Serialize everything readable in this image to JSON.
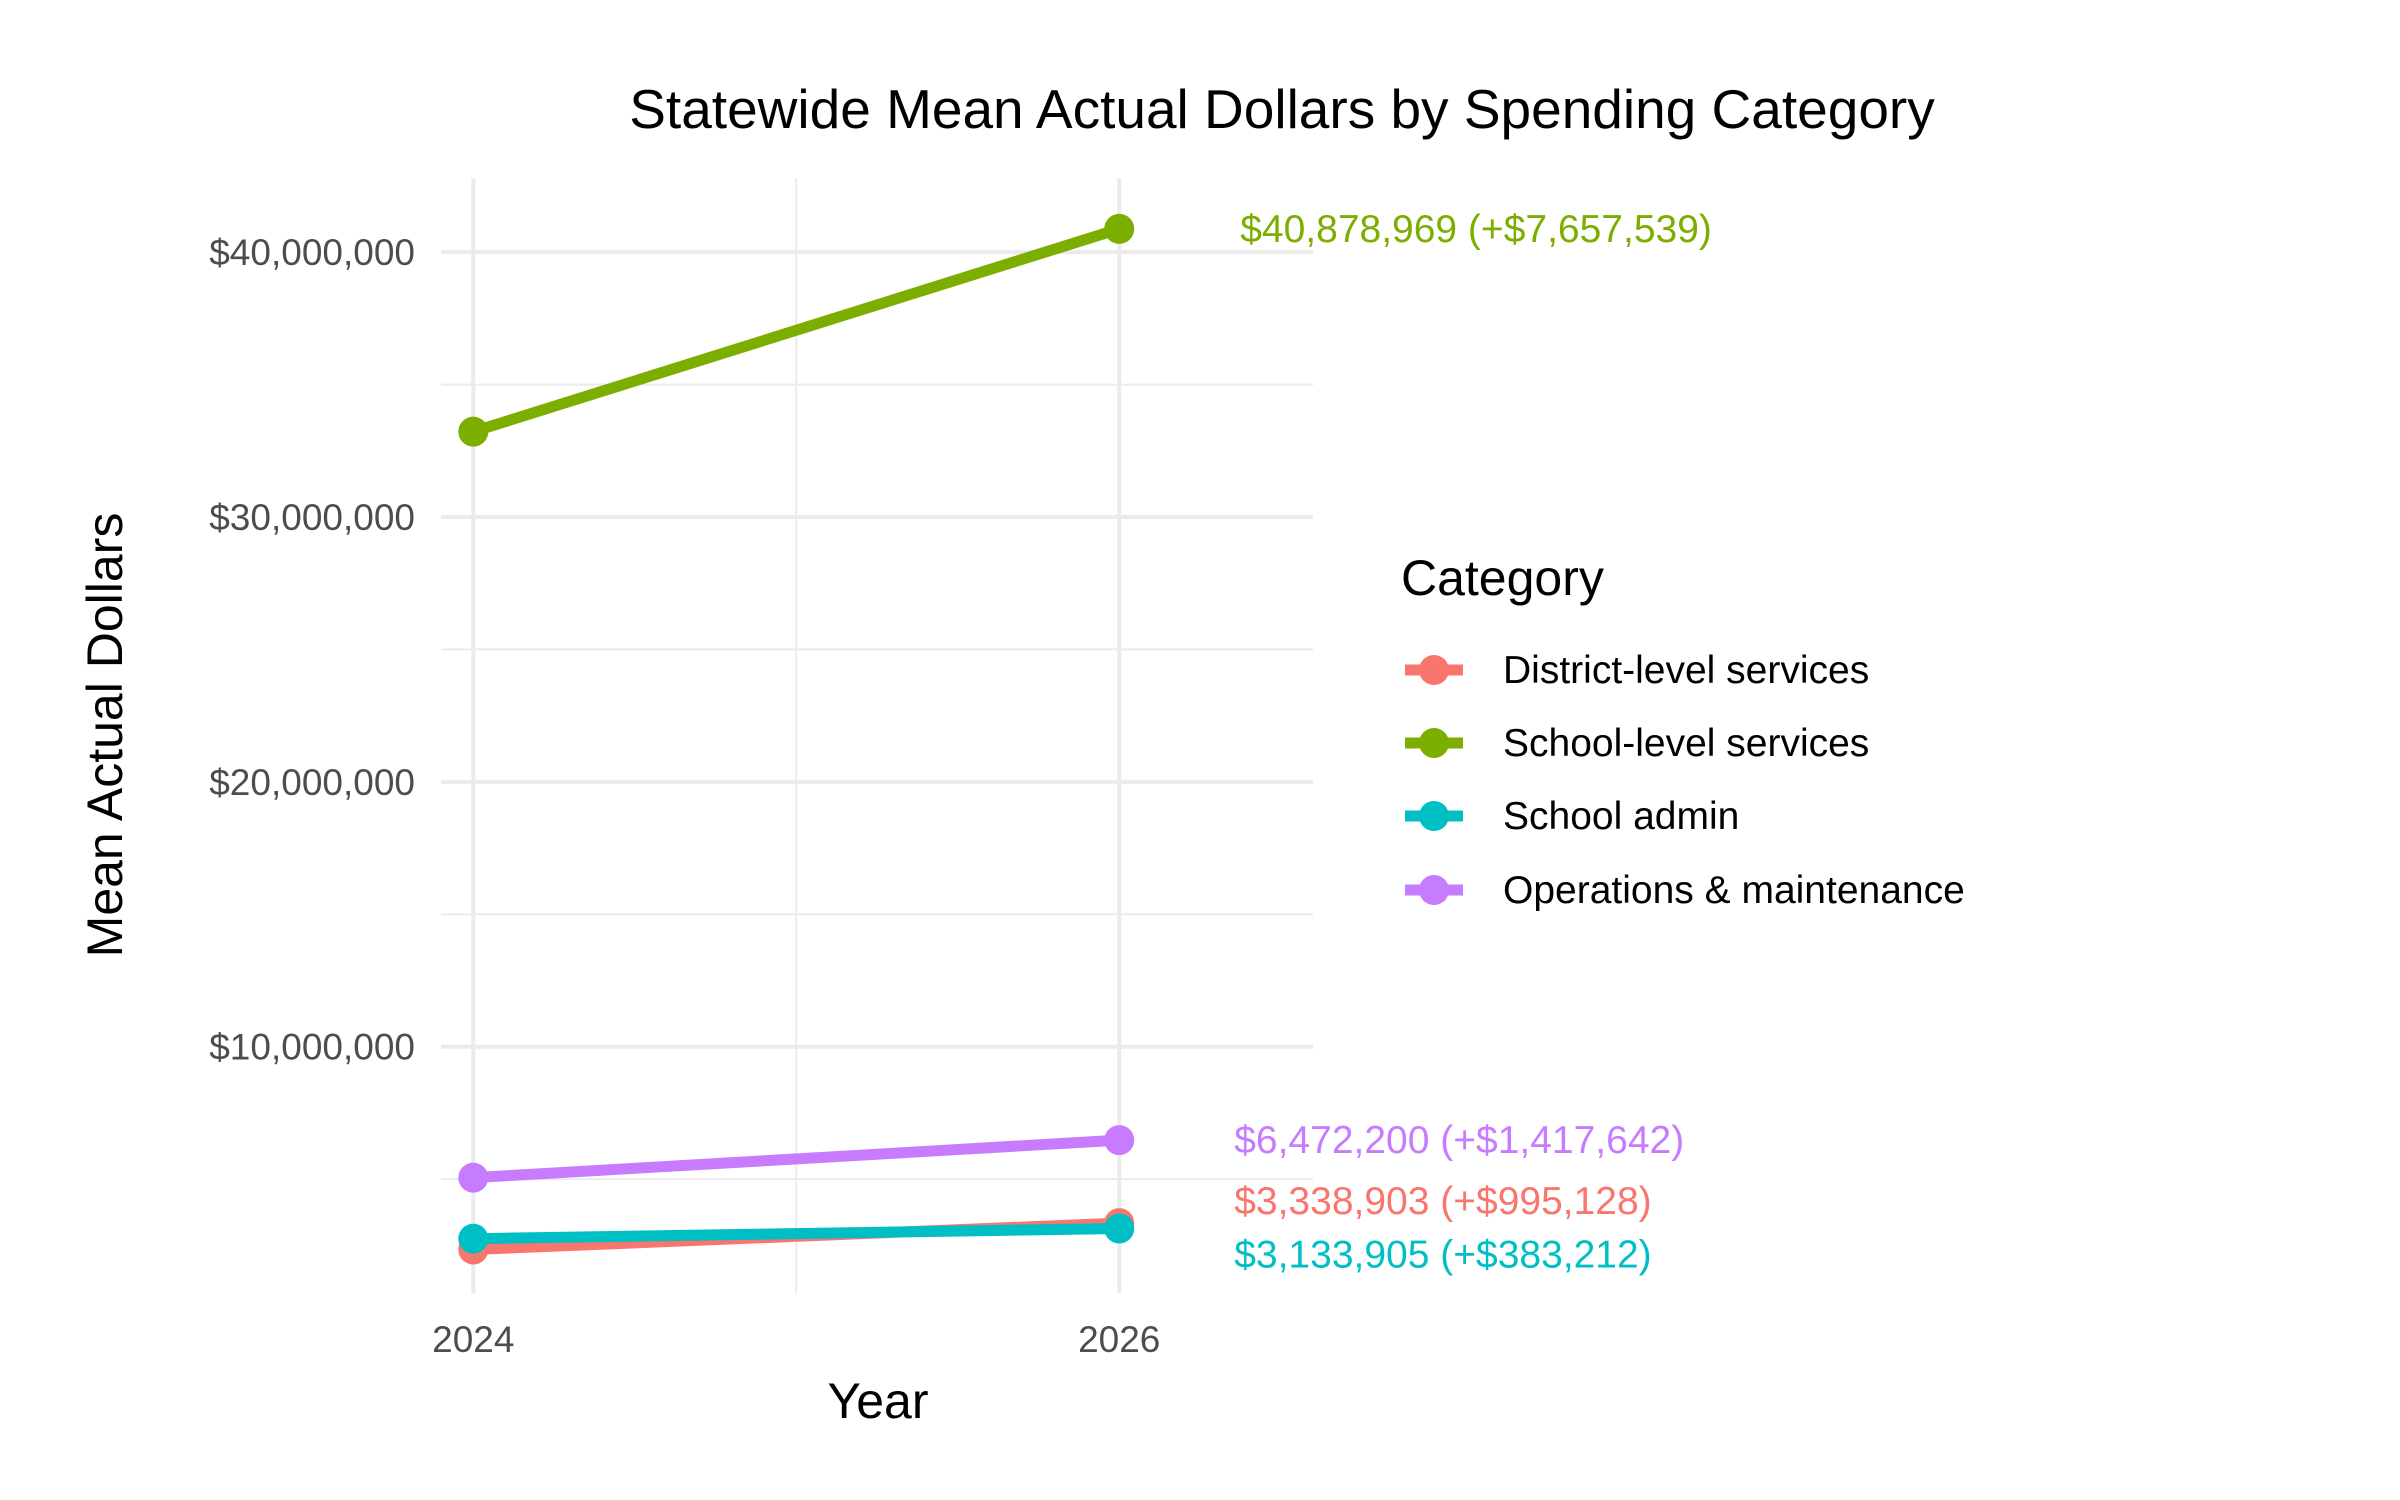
{
  "chart_data": {
    "type": "line",
    "title": "Statewide Mean Actual Dollars by Spending Category",
    "xlabel": "Year",
    "ylabel": "Mean Actual Dollars",
    "x": [
      2024,
      2026
    ],
    "x_ticks": [
      "2024",
      "2026"
    ],
    "y_ticks": [
      "$10,000,000",
      "$20,000,000",
      "$30,000,000",
      "$40,000,000"
    ],
    "y_tick_values": [
      10000000,
      20000000,
      30000000,
      40000000
    ],
    "xlim": [
      2023.9,
      2026.6
    ],
    "ylim": [
      700000,
      42800000
    ],
    "grid": true,
    "legend": {
      "title": "Category",
      "position": "right"
    },
    "series": [
      {
        "name": "District-level services",
        "color": "#F8766D",
        "values": [
          2343775,
          3338903
        ],
        "label": "$3,338,903 (+$995,128)"
      },
      {
        "name": "School-level services",
        "color": "#7CAE00",
        "values": [
          33221430,
          40878969
        ],
        "label": "$40,878,969 (+$7,657,539)"
      },
      {
        "name": "School admin",
        "color": "#00BFC4",
        "values": [
          2750693,
          3133905
        ],
        "label": "$3,133,905 (+$383,212)"
      },
      {
        "name": "Operations & maintenance",
        "color": "#C77CFF",
        "values": [
          5054558,
          6472200
        ],
        "label": "$6,472,200 (+$1,417,642)"
      }
    ]
  }
}
